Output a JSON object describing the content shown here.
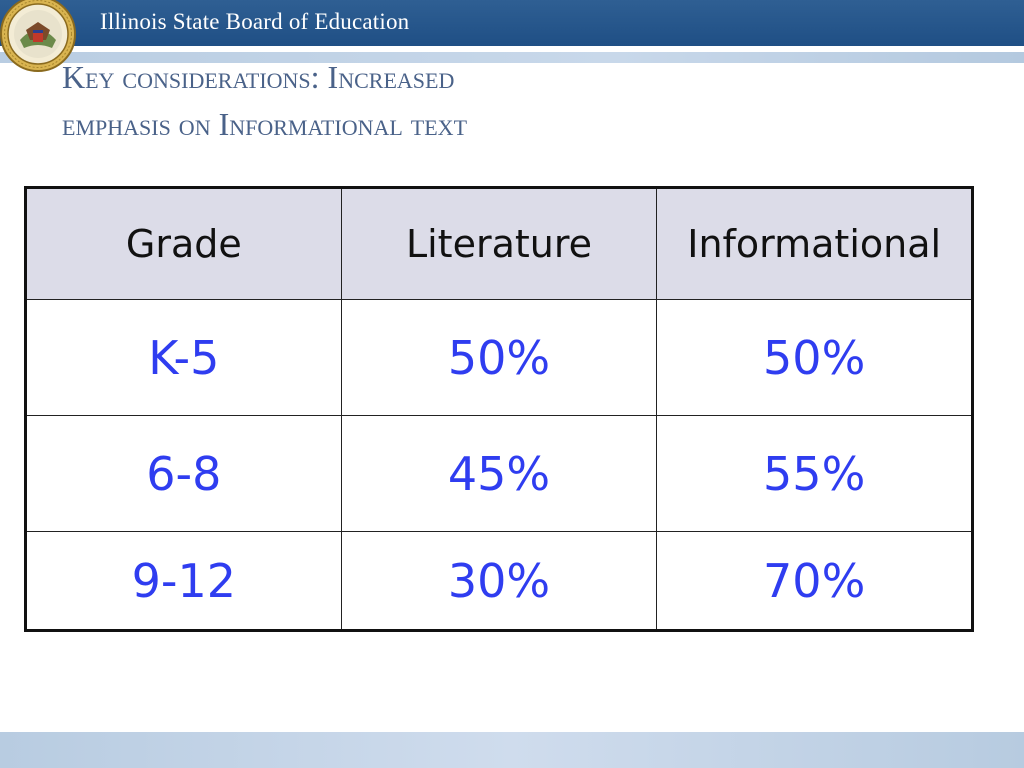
{
  "header": {
    "title": "Illinois State Board of Education",
    "bar_color": "#1f4f85",
    "seal_icon": "illinois-state-seal-icon"
  },
  "slide": {
    "title_line1": "Key considerations: Increased",
    "title_line2": "emphasis on Informational text",
    "title_color": "#4a6289"
  },
  "table": {
    "columns": [
      "Grade",
      "Literature",
      "Informational"
    ],
    "rows": [
      {
        "grade": "K-5",
        "literature": "50%",
        "informational": "50%"
      },
      {
        "grade": "6-8",
        "literature": "45%",
        "informational": "55%"
      },
      {
        "grade": "9-12",
        "literature": "30%",
        "informational": "70%"
      }
    ],
    "header_bg": "#dcdce8",
    "value_color": "#2f3df0"
  }
}
